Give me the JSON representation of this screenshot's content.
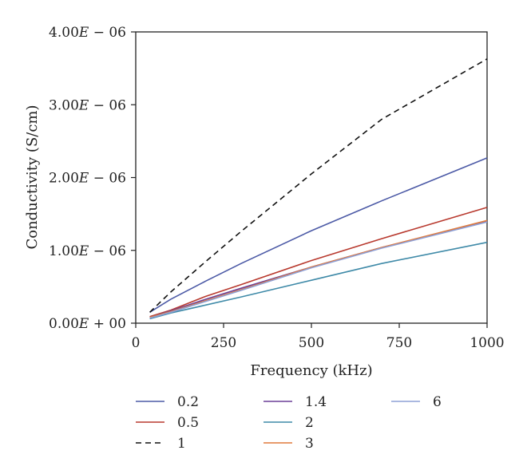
{
  "chart_data": {
    "type": "line",
    "title": "",
    "xlabel": "Frequency (kHz)",
    "ylabel": "Conductivity (S/cm)",
    "xlim": [
      0,
      1000
    ],
    "ylim": [
      0,
      4e-06
    ],
    "xticks": [
      0,
      250,
      500,
      750,
      1000
    ],
    "xtick_labels": [
      "0",
      "250",
      "500",
      "750",
      "1000"
    ],
    "yticks": [
      0,
      1e-06,
      2e-06,
      3e-06,
      4e-06
    ],
    "ytick_labels": [
      {
        "mant": "0.00",
        "exp": "+ 00"
      },
      {
        "mant": "1.00",
        "exp": "− 06"
      },
      {
        "mant": "2.00",
        "exp": "− 06"
      },
      {
        "mant": "3.00",
        "exp": "− 06"
      },
      {
        "mant": "4.00",
        "exp": "− 06"
      }
    ],
    "grid": false,
    "legend_position": "below",
    "x": [
      40,
      100,
      200,
      300,
      500,
      700,
      1000
    ],
    "series": [
      {
        "name": "0.2",
        "color": "#4c5aa6",
        "dashed": false,
        "values": [
          1.5e-07,
          3.3e-07,
          5.8e-07,
          8.2e-07,
          1.27e-06,
          1.68e-06,
          2.27e-06
        ]
      },
      {
        "name": "0.5",
        "color": "#b8392e",
        "dashed": false,
        "values": [
          9e-08,
          1.8e-07,
          3.7e-07,
          5.3e-07,
          8.6e-07,
          1.16e-06,
          1.59e-06
        ]
      },
      {
        "name": "1",
        "color": "#111111",
        "dashed": true,
        "values": [
          1.5e-07,
          4.3e-07,
          8.5e-07,
          1.26e-06,
          2.05e-06,
          2.8e-06,
          3.63e-06
        ]
      },
      {
        "name": "1.4",
        "color": "#6b3f97",
        "dashed": false,
        "values": [
          8e-08,
          1.7e-07,
          3.3e-07,
          4.8e-07,
          7.7e-07,
          1.04e-06,
          1.4e-06
        ]
      },
      {
        "name": "2",
        "color": "#3f8aa8",
        "dashed": false,
        "values": [
          6e-08,
          1.4e-07,
          2.5e-07,
          3.6e-07,
          5.9e-07,
          8.2e-07,
          1.11e-06
        ]
      },
      {
        "name": "3",
        "color": "#e07a3c",
        "dashed": false,
        "values": [
          8e-08,
          1.6e-07,
          3.1e-07,
          4.6e-07,
          7.7e-07,
          1.04e-06,
          1.41e-06
        ]
      },
      {
        "name": "6",
        "color": "#8ea0d6",
        "dashed": false,
        "values": [
          7e-08,
          1.5e-07,
          3e-07,
          4.5e-07,
          7.6e-07,
          1.03e-06,
          1.39e-06
        ]
      }
    ]
  }
}
